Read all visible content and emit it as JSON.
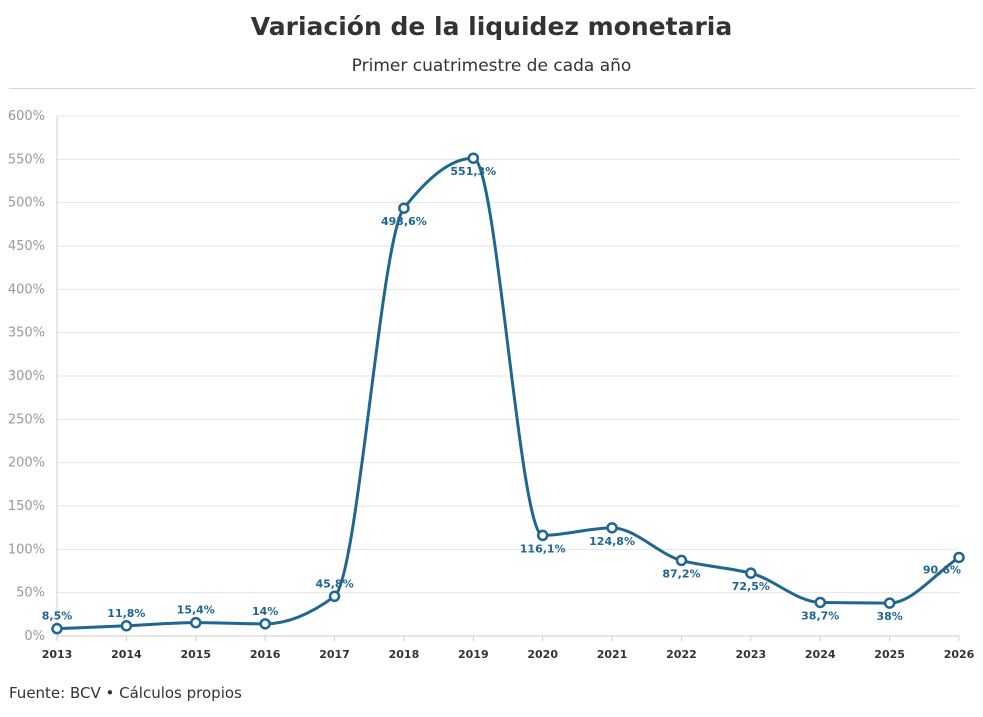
{
  "header": {
    "title": "Variación de la liquidez monetaria",
    "subtitle": "Primer cuatrimestre de cada año"
  },
  "footer": {
    "source": "Fuente: BCV • Cálculos propios"
  },
  "colors": {
    "line": "#1f6690",
    "grid": "#e5e5e5",
    "axis_text": "#999999"
  },
  "chart_data": {
    "type": "line",
    "title": "Variación de la liquidez monetaria",
    "subtitle": "Primer cuatrimestre de cada año",
    "x": [
      "2013",
      "2014",
      "2015",
      "2016",
      "2017",
      "2018",
      "2019",
      "2020",
      "2021",
      "2022",
      "2023",
      "2024",
      "2025",
      "2026"
    ],
    "series": [
      {
        "values": [
          8.5,
          11.8,
          15.4,
          14,
          45.8,
          493.6,
          551.3,
          116.1,
          124.8,
          87.2,
          72.5,
          38.7,
          38,
          90.6
        ],
        "labels": [
          "8,5%",
          "11,8%",
          "15,4%",
          "14%",
          "45,8%",
          "493,6%",
          "551,3%",
          "116,1%",
          "124,8%",
          "87,2%",
          "72,5%",
          "38,7%",
          "38%",
          "90,6%"
        ]
      }
    ],
    "ylim": [
      0,
      600
    ],
    "yticks": [
      0,
      50,
      100,
      150,
      200,
      250,
      300,
      350,
      400,
      450,
      500,
      550,
      600
    ],
    "ytick_labels": [
      "0%",
      "50%",
      "100%",
      "150%",
      "200%",
      "250%",
      "300%",
      "350%",
      "400%",
      "450%",
      "500%",
      "550%",
      "600%"
    ],
    "grid": true,
    "xlabel": "",
    "ylabel": ""
  }
}
